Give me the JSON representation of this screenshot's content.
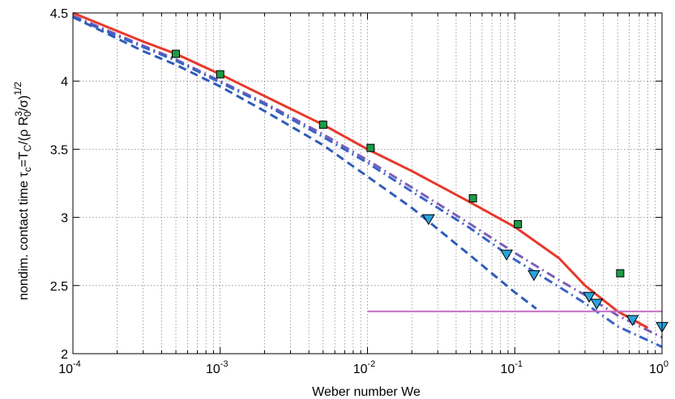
{
  "chart_data": {
    "type": "line",
    "xlabel": "Weber number We",
    "ylabel_parts": {
      "a": "nondim. contact time τ",
      "a_sub": "c",
      "b": "=T",
      "b_sub": "C",
      "c": "/(ρ R",
      "c_sub": "0",
      "c_sup": "3",
      "d": "/σ)",
      "d_sup": "1/2"
    },
    "x_scale": "log",
    "xlim": [
      0.0001,
      1
    ],
    "ylim": [
      2,
      4.5
    ],
    "grid": true,
    "x_ticks": [
      {
        "base": "10",
        "exp": "-4",
        "value": 0.0001
      },
      {
        "base": "10",
        "exp": "-3",
        "value": 0.001
      },
      {
        "base": "10",
        "exp": "-2",
        "value": 0.01
      },
      {
        "base": "10",
        "exp": "-1",
        "value": 0.1
      },
      {
        "base": "10",
        "exp": "0",
        "value": 1
      }
    ],
    "y_ticks": [
      {
        "label": "2",
        "value": 2
      },
      {
        "label": "2.5",
        "value": 2.5
      },
      {
        "label": "3",
        "value": 3
      },
      {
        "label": "3.5",
        "value": 3.5
      },
      {
        "label": "4",
        "value": 4
      },
      {
        "label": "4.5",
        "value": 4.5
      }
    ],
    "lines": [
      {
        "style": "solid",
        "color": "#e8382a",
        "width": 3,
        "x": [
          0.0001,
          0.0003,
          0.0005,
          0.001,
          0.002,
          0.005,
          0.01,
          0.02,
          0.05,
          0.1,
          0.2,
          0.3,
          0.5,
          0.8
        ],
        "y": [
          4.5,
          4.29,
          4.2,
          4.05,
          3.89,
          3.68,
          3.5,
          3.34,
          3.11,
          2.93,
          2.7,
          2.5,
          2.31,
          2.19
        ]
      },
      {
        "style": "dashdot",
        "color": "#7b5fb8",
        "width": 3,
        "x": [
          0.0001,
          0.0003,
          0.0005,
          0.001,
          0.002,
          0.005,
          0.01,
          0.02,
          0.05,
          0.1,
          0.2,
          0.3,
          0.5,
          1
        ],
        "y": [
          4.48,
          4.26,
          4.16,
          4.0,
          3.84,
          3.61,
          3.42,
          3.22,
          2.95,
          2.74,
          2.54,
          2.43,
          2.28,
          2.12
        ]
      },
      {
        "style": "dashdot",
        "color": "#3a63c6",
        "width": 3,
        "x": [
          0.0001,
          0.0003,
          0.0005,
          0.001,
          0.002,
          0.005,
          0.01,
          0.02,
          0.05,
          0.1,
          0.2,
          0.3,
          0.5,
          1
        ],
        "y": [
          4.47,
          4.25,
          4.15,
          3.99,
          3.83,
          3.59,
          3.4,
          3.19,
          2.92,
          2.69,
          2.49,
          2.37,
          2.2,
          2.05
        ]
      },
      {
        "style": "dashed",
        "color": "#2f5cb7",
        "width": 3,
        "x": [
          0.0001,
          0.0003,
          0.0005,
          0.001,
          0.002,
          0.005,
          0.01,
          0.02,
          0.05,
          0.1,
          0.14
        ],
        "y": [
          4.47,
          4.22,
          4.12,
          3.96,
          3.78,
          3.53,
          3.3,
          3.07,
          2.72,
          2.45,
          2.33
        ]
      },
      {
        "style": "solid",
        "color": "#c26cc4",
        "width": 2,
        "x": [
          0.01,
          1
        ],
        "y": [
          2.31,
          2.31
        ]
      }
    ],
    "markers": [
      {
        "shape": "square",
        "fill": "#1e9a47",
        "x": [
          0.0005,
          0.001,
          0.005,
          0.0105,
          0.052,
          0.105,
          0.52
        ],
        "y": [
          4.2,
          4.05,
          3.68,
          3.51,
          3.14,
          2.95,
          2.59
        ]
      },
      {
        "shape": "triangle-down",
        "fill": "#29a3dc",
        "x": [
          0.026,
          0.088,
          0.135,
          0.32,
          0.36,
          0.63,
          1.0
        ],
        "y": [
          2.99,
          2.73,
          2.58,
          2.42,
          2.37,
          2.25,
          2.2
        ]
      }
    ],
    "colors": {
      "axis": "#000000",
      "grid": "#888888",
      "background": "#ffffff"
    }
  }
}
